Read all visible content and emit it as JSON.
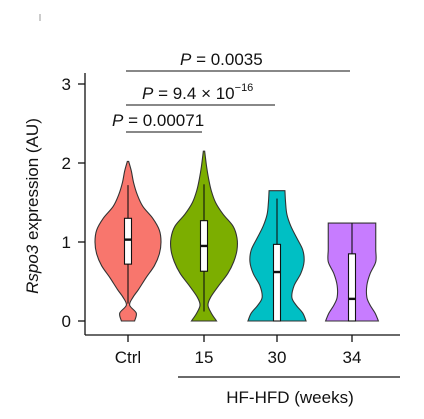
{
  "chart_data": {
    "type": "violin",
    "categories": [
      "Ctrl",
      "15",
      "30",
      "34"
    ],
    "group_label": "HF-HFD (weeks)",
    "ylabel_italic": "Rspo3",
    "ylabel_rest": " expression (AU)",
    "ylim": [
      0,
      3
    ],
    "yticks": [
      "0",
      "1",
      "2",
      "3"
    ],
    "colors": [
      "#F8766D",
      "#7CAE00",
      "#00BFC4",
      "#C77CFF"
    ],
    "series": [
      {
        "category": "Ctrl",
        "color": "#F8766D",
        "min": 0.0,
        "max": 2.02,
        "q1": 0.72,
        "median": 1.03,
        "q3": 1.3,
        "whisker_low": 0.22,
        "whisker_high": 1.72,
        "density": [
          [
            0,
            0.2
          ],
          [
            0.1,
            0.25
          ],
          [
            0.2,
            0.05
          ],
          [
            0.3,
            0.15
          ],
          [
            0.4,
            0.32
          ],
          [
            0.55,
            0.55
          ],
          [
            0.7,
            0.8
          ],
          [
            0.85,
            0.95
          ],
          [
            1.0,
            1.0
          ],
          [
            1.15,
            0.95
          ],
          [
            1.3,
            0.75
          ],
          [
            1.45,
            0.45
          ],
          [
            1.6,
            0.28
          ],
          [
            1.75,
            0.17
          ],
          [
            1.9,
            0.1
          ],
          [
            2.02,
            0.02
          ]
        ]
      },
      {
        "category": "15",
        "color": "#7CAE00",
        "min": 0.0,
        "max": 2.15,
        "q1": 0.63,
        "median": 0.95,
        "q3": 1.27,
        "whisker_low": 0.12,
        "whisker_high": 1.73,
        "density": [
          [
            0,
            0.38
          ],
          [
            0.1,
            0.22
          ],
          [
            0.2,
            0.12
          ],
          [
            0.3,
            0.2
          ],
          [
            0.45,
            0.45
          ],
          [
            0.6,
            0.72
          ],
          [
            0.75,
            0.9
          ],
          [
            0.9,
            1.0
          ],
          [
            1.05,
            1.0
          ],
          [
            1.2,
            0.88
          ],
          [
            1.35,
            0.58
          ],
          [
            1.5,
            0.35
          ],
          [
            1.65,
            0.22
          ],
          [
            1.8,
            0.14
          ],
          [
            1.95,
            0.08
          ],
          [
            2.15,
            0.02
          ]
        ]
      },
      {
        "category": "30",
        "color": "#00BFC4",
        "min": 0.0,
        "max": 1.65,
        "q1": 0.0,
        "median": 0.62,
        "q3": 0.97,
        "whisker_low": 0.0,
        "whisker_high": 1.55,
        "density": [
          [
            0,
            0.88
          ],
          [
            0.1,
            0.78
          ],
          [
            0.2,
            0.58
          ],
          [
            0.3,
            0.45
          ],
          [
            0.45,
            0.52
          ],
          [
            0.6,
            0.72
          ],
          [
            0.75,
            0.82
          ],
          [
            0.9,
            0.78
          ],
          [
            1.05,
            0.6
          ],
          [
            1.2,
            0.42
          ],
          [
            1.35,
            0.3
          ],
          [
            1.5,
            0.26
          ],
          [
            1.65,
            0.24
          ]
        ]
      },
      {
        "category": "34",
        "color": "#C77CFF",
        "min": 0.0,
        "max": 1.24,
        "q1": 0.0,
        "median": 0.28,
        "q3": 0.85,
        "whisker_low": 0.0,
        "whisker_high": 1.24,
        "density": [
          [
            0,
            0.8
          ],
          [
            0.1,
            0.7
          ],
          [
            0.2,
            0.55
          ],
          [
            0.3,
            0.45
          ],
          [
            0.45,
            0.45
          ],
          [
            0.6,
            0.55
          ],
          [
            0.75,
            0.72
          ],
          [
            0.9,
            0.72
          ],
          [
            1.05,
            0.72
          ],
          [
            1.24,
            0.72
          ]
        ]
      }
    ],
    "comparisons": [
      {
        "from": "Ctrl",
        "to": "15",
        "p_prefix": "P",
        "p_value": " = 0.00071",
        "exponent": ""
      },
      {
        "from": "Ctrl",
        "to": "30",
        "p_prefix": "P",
        "p_value": " = 9.4 × 10",
        "exponent": "−16"
      },
      {
        "from": "Ctrl",
        "to": "34",
        "p_prefix": "P",
        "p_value": " = 0.0035",
        "exponent": ""
      }
    ]
  }
}
